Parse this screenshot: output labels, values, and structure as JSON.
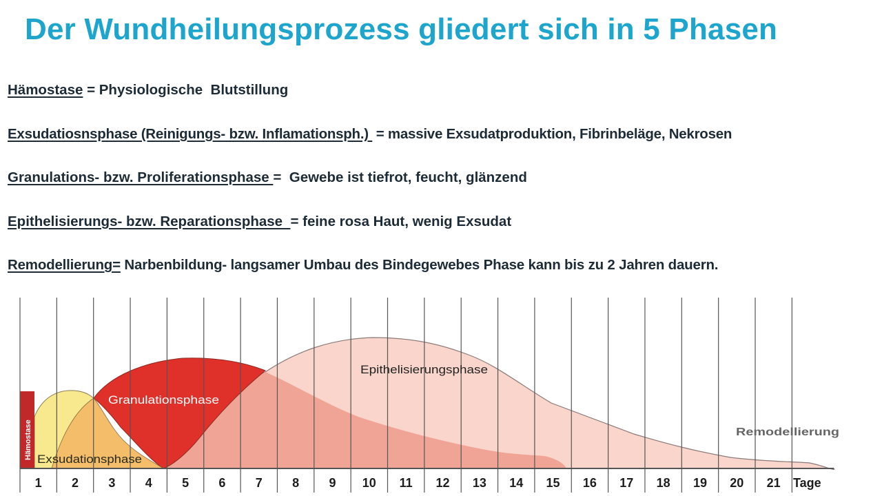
{
  "title": "Der Wundheilungsprozess gliedert sich in 5 Phasen",
  "definitions": [
    {
      "term": "Hämostase",
      "text": " = Physiologische  Blutstillung"
    },
    {
      "term": "Exsudatiosnsphase (Reinigungs- bzw. Inflamationsph.) ",
      "text": " = massive Exsudatproduktion, Fibrinbeläge, Nekrosen"
    },
    {
      "term": "Granulations- bzw. Proliferationsphase ",
      "text": "=  Gewebe ist tiefrot, feucht, glänzend"
    },
    {
      "term": "Epithelisierungs- bzw. Reparationsphase  ",
      "text": "= feine rosa Haut, wenig Exsudat"
    },
    {
      "term": "Remodellierung=",
      "text": " Narbenbildung- langsamer Umbau des Bindegewebes Phase kann bis zu 2 Jahren dauern."
    }
  ],
  "diagram": {
    "days": [
      "1",
      "2",
      "3",
      "4",
      "5",
      "6",
      "7",
      "8",
      "9",
      "10",
      "11",
      "12",
      "13",
      "14",
      "15",
      "16",
      "17",
      "18",
      "19",
      "20",
      "21"
    ],
    "unit_label": "Tage",
    "phases": {
      "haemostase": "Hämostase",
      "exsudation": "Exsudationsphase",
      "granulation": "Granulationsphase",
      "epithelisierung": "Epithelisierungsphase",
      "remodellierung": "Remodellierung"
    },
    "colors": {
      "haemostase": "#c0282a",
      "exsudation": "#f9e98e",
      "exsudation_overlap": "#f3bd6a",
      "granulation": "#e0302a",
      "proliferation": "#f0a496",
      "epithelisierung": "#f9d5cb",
      "title": "#1ea5cd"
    }
  }
}
